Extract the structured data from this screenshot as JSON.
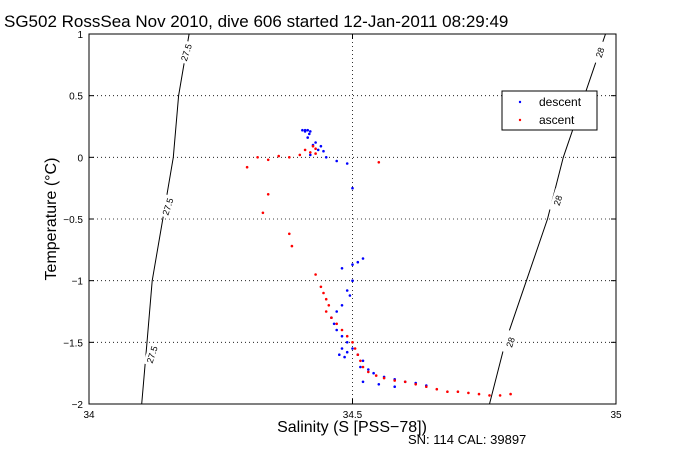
{
  "chart_data": {
    "type": "scatter",
    "title": "SG502 RossSea Nov 2010, dive 606 started 12-Jan-2011 08:29:49",
    "xlabel": "Salinity (S [PSS−78])",
    "ylabel": "Temperature (°C)",
    "xlim": [
      34,
      35
    ],
    "ylim": [
      -2,
      1
    ],
    "x_ticks": [
      34,
      34.5,
      35
    ],
    "x_tick_labels": [
      "34",
      "34.5",
      "35"
    ],
    "y_ticks": [
      -2,
      -1.5,
      -1,
      -0.5,
      0,
      0.5,
      1
    ],
    "y_tick_labels": [
      "−2",
      "−1.5",
      "−1",
      "−0.5",
      "0",
      "0.5",
      "1"
    ],
    "grid": true,
    "legend_position": "top-right",
    "footer": "SN: 114  CAL: 39897",
    "density_contours": [
      {
        "label": "27.5",
        "points": [
          [
            34.19,
            1.0
          ],
          [
            34.17,
            0.5
          ],
          [
            34.16,
            0.0
          ],
          [
            34.14,
            -0.5
          ],
          [
            34.12,
            -1.0
          ],
          [
            34.11,
            -1.5
          ],
          [
            34.1,
            -2.0
          ]
        ]
      },
      {
        "label": "28",
        "points": [
          [
            34.98,
            1.0
          ],
          [
            34.94,
            0.5
          ],
          [
            34.9,
            0.0
          ],
          [
            34.87,
            -0.5
          ],
          [
            34.83,
            -1.0
          ],
          [
            34.79,
            -1.5
          ],
          [
            34.76,
            -2.0
          ]
        ]
      }
    ],
    "contour_labels": [
      {
        "text": "27.5",
        "x": 34.185,
        "y": 0.85
      },
      {
        "text": "27.5",
        "x": 34.15,
        "y": -0.4
      },
      {
        "text": "27.5",
        "x": 34.12,
        "y": -1.6
      },
      {
        "text": "28",
        "x": 34.97,
        "y": 0.85
      },
      {
        "text": "28",
        "x": 34.89,
        "y": -0.35
      },
      {
        "text": "28",
        "x": 34.8,
        "y": -1.5
      }
    ],
    "series": [
      {
        "name": "descent",
        "color": "#0000ff",
        "points": [
          [
            34.405,
            0.22
          ],
          [
            34.41,
            0.22
          ],
          [
            34.415,
            0.22
          ],
          [
            34.42,
            0.21
          ],
          [
            34.41,
            0.21
          ],
          [
            34.418,
            0.19
          ],
          [
            34.415,
            0.16
          ],
          [
            34.43,
            0.12
          ],
          [
            34.425,
            0.1
          ],
          [
            34.44,
            0.09
          ],
          [
            34.435,
            0.06
          ],
          [
            34.445,
            0.05
          ],
          [
            34.42,
            0.02
          ],
          [
            34.45,
            0.0
          ],
          [
            34.47,
            -0.03
          ],
          [
            34.49,
            -0.05
          ],
          [
            34.5,
            -0.25
          ],
          [
            34.52,
            -0.82
          ],
          [
            34.51,
            -0.85
          ],
          [
            34.5,
            -0.87
          ],
          [
            34.48,
            -0.9
          ],
          [
            34.5,
            -1.0
          ],
          [
            34.49,
            -1.08
          ],
          [
            34.495,
            -1.12
          ],
          [
            34.48,
            -1.2
          ],
          [
            34.47,
            -1.25
          ],
          [
            34.46,
            -1.3
          ],
          [
            34.465,
            -1.35
          ],
          [
            34.47,
            -1.4
          ],
          [
            34.48,
            -1.45
          ],
          [
            34.49,
            -1.5
          ],
          [
            34.48,
            -1.55
          ],
          [
            34.475,
            -1.6
          ],
          [
            34.485,
            -1.62
          ],
          [
            34.49,
            -1.58
          ],
          [
            34.5,
            -1.55
          ],
          [
            34.51,
            -1.6
          ],
          [
            34.52,
            -1.65
          ],
          [
            34.515,
            -1.7
          ],
          [
            34.53,
            -1.72
          ],
          [
            34.54,
            -1.75
          ],
          [
            34.56,
            -1.78
          ],
          [
            34.58,
            -1.8
          ],
          [
            34.6,
            -1.82
          ],
          [
            34.62,
            -1.83
          ],
          [
            34.64,
            -1.85
          ],
          [
            34.58,
            -1.86
          ],
          [
            34.55,
            -1.84
          ],
          [
            34.52,
            -1.82
          ]
        ]
      },
      {
        "name": "ascent",
        "color": "#ff0000",
        "points": [
          [
            34.3,
            -0.08
          ],
          [
            34.32,
            0.0
          ],
          [
            34.34,
            -0.02
          ],
          [
            34.36,
            0.01
          ],
          [
            34.38,
            0.0
          ],
          [
            34.4,
            0.02
          ],
          [
            34.42,
            0.04
          ],
          [
            34.43,
            0.07
          ],
          [
            34.425,
            0.09
          ],
          [
            34.41,
            0.06
          ],
          [
            34.43,
            0.03
          ],
          [
            34.55,
            -0.04
          ],
          [
            34.34,
            -0.3
          ],
          [
            34.33,
            -0.45
          ],
          [
            34.38,
            -0.62
          ],
          [
            34.385,
            -0.72
          ],
          [
            34.43,
            -0.95
          ],
          [
            34.44,
            -1.05
          ],
          [
            34.445,
            -1.1
          ],
          [
            34.45,
            -1.15
          ],
          [
            34.455,
            -1.2
          ],
          [
            34.45,
            -1.25
          ],
          [
            34.46,
            -1.3
          ],
          [
            34.47,
            -1.35
          ],
          [
            34.48,
            -1.4
          ],
          [
            34.49,
            -1.45
          ],
          [
            34.5,
            -1.5
          ],
          [
            34.505,
            -1.55
          ],
          [
            34.51,
            -1.6
          ],
          [
            34.515,
            -1.65
          ],
          [
            34.52,
            -1.7
          ],
          [
            34.53,
            -1.74
          ],
          [
            34.545,
            -1.77
          ],
          [
            34.56,
            -1.79
          ],
          [
            34.58,
            -1.81
          ],
          [
            34.6,
            -1.82
          ],
          [
            34.62,
            -1.84
          ],
          [
            34.64,
            -1.86
          ],
          [
            34.66,
            -1.88
          ],
          [
            34.68,
            -1.9
          ],
          [
            34.7,
            -1.9
          ],
          [
            34.72,
            -1.91
          ],
          [
            34.74,
            -1.92
          ],
          [
            34.76,
            -1.93
          ],
          [
            34.78,
            -1.93
          ],
          [
            34.8,
            -1.92
          ]
        ]
      }
    ]
  }
}
